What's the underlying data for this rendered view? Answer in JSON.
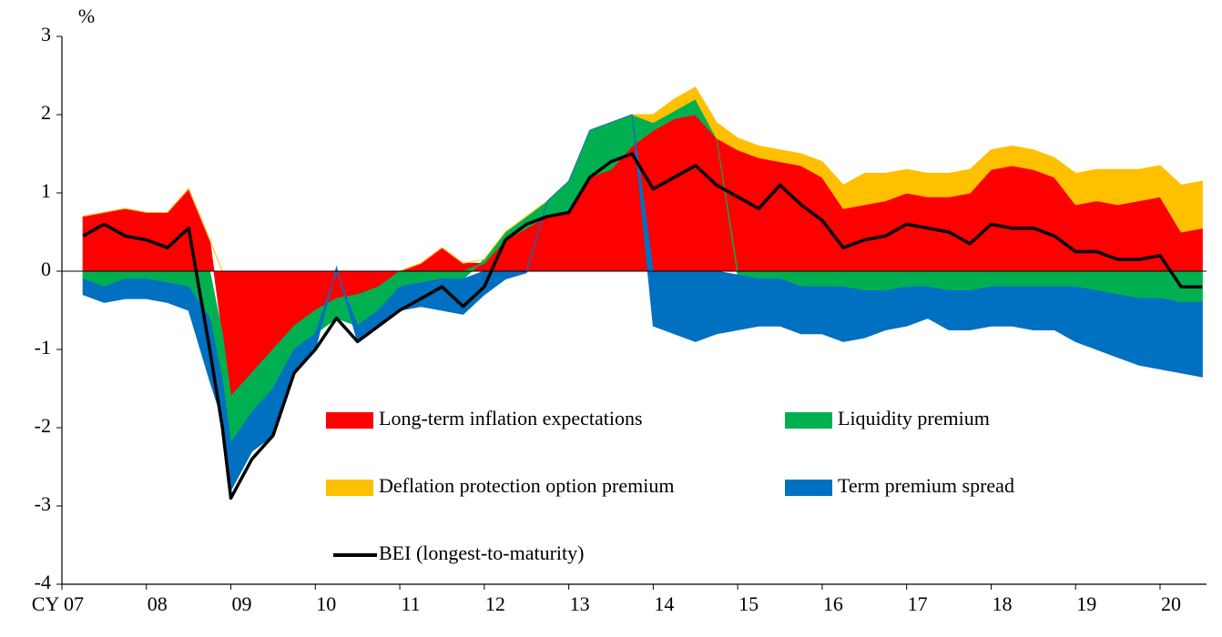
{
  "chart_data": {
    "type": "area",
    "stacked": true,
    "y_label": "%",
    "x": [
      2007.25,
      2007.5,
      2007.75,
      2008,
      2008.25,
      2008.5,
      2008.75,
      2008.9,
      2009,
      2009.25,
      2009.5,
      2009.75,
      2010,
      2010.25,
      2010.5,
      2010.75,
      2011,
      2011.25,
      2011.5,
      2011.75,
      2012,
      2012.25,
      2012.5,
      2012.75,
      2013,
      2013.25,
      2013.5,
      2013.75,
      2014,
      2014.25,
      2014.5,
      2014.75,
      2015,
      2015.25,
      2015.5,
      2015.75,
      2016,
      2016.25,
      2016.5,
      2016.75,
      2017,
      2017.25,
      2017.5,
      2017.75,
      2018,
      2018.25,
      2018.5,
      2018.75,
      2019,
      2019.25,
      2019.5,
      2019.75,
      2020,
      2020.25,
      2020.5
    ],
    "series": [
      {
        "name": "Long-term inflation expectations",
        "color": "#ff0000",
        "type": "area",
        "values": [
          0.7,
          0.75,
          0.8,
          0.75,
          0.75,
          1.05,
          0.4,
          -0.8,
          -1.6,
          -1.3,
          -1.0,
          -0.7,
          -0.5,
          -0.35,
          -0.3,
          -0.2,
          0.0,
          0.1,
          0.3,
          0.1,
          0.1,
          0.4,
          0.55,
          0.7,
          0.75,
          1.2,
          1.3,
          1.6,
          1.8,
          1.95,
          2.0,
          1.7,
          1.55,
          1.45,
          1.4,
          1.35,
          1.2,
          0.8,
          0.85,
          0.9,
          1.0,
          0.95,
          0.95,
          1.0,
          1.3,
          1.35,
          1.3,
          1.2,
          0.85,
          0.9,
          0.85,
          0.9,
          0.95,
          0.5,
          0.55
        ]
      },
      {
        "name": "Liquidity premium",
        "color": "#00b050",
        "type": "area",
        "values": [
          -0.1,
          -0.2,
          -0.1,
          -0.1,
          -0.15,
          -0.2,
          -0.6,
          -0.6,
          -0.6,
          -0.5,
          -0.5,
          -0.3,
          -0.3,
          -0.25,
          -0.4,
          -0.3,
          -0.2,
          -0.15,
          -0.1,
          -0.1,
          0.05,
          0.1,
          0.15,
          0.2,
          0.4,
          0.6,
          0.6,
          0.4,
          0.1,
          0.1,
          0.2,
          0,
          -0.05,
          -0.1,
          -0.1,
          -0.2,
          -0.2,
          -0.2,
          -0.25,
          -0.25,
          -0.2,
          -0.2,
          -0.25,
          -0.25,
          -0.2,
          -0.2,
          -0.2,
          -0.2,
          -0.2,
          -0.25,
          -0.3,
          -0.35,
          -0.35,
          -0.4,
          -0.4
        ]
      },
      {
        "name": "Deflation protection option premium",
        "color": "#ffc000",
        "type": "area",
        "values": [
          0,
          0,
          0,
          0,
          0,
          0,
          0,
          0,
          0,
          0,
          0,
          0,
          0,
          0,
          0,
          0,
          0,
          0,
          0,
          0,
          0,
          0,
          0,
          0,
          0,
          0,
          0,
          0,
          0.1,
          0.15,
          0.15,
          0.2,
          0.15,
          0.15,
          0.15,
          0.15,
          0.2,
          0.3,
          0.4,
          0.35,
          0.3,
          0.3,
          0.3,
          0.3,
          0.25,
          0.25,
          0.25,
          0.25,
          0.4,
          0.4,
          0.45,
          0.4,
          0.4,
          0.6,
          0.6
        ]
      },
      {
        "name": "Term premium spread",
        "color": "#0070c0",
        "type": "area",
        "values": [
          -0.2,
          -0.2,
          -0.25,
          -0.25,
          -0.25,
          -0.3,
          -0.8,
          -0.5,
          -0.6,
          -0.5,
          -0.6,
          -0.3,
          -0.2,
          0.05,
          -0.2,
          -0.2,
          -0.3,
          -0.3,
          -0.4,
          -0.45,
          -0.3,
          -0.1,
          -0.02,
          0,
          0,
          0,
          0,
          0,
          -0.7,
          -0.8,
          -0.9,
          -0.8,
          -0.7,
          -0.6,
          -0.6,
          -0.6,
          -0.6,
          -0.7,
          -0.6,
          -0.5,
          -0.5,
          -0.4,
          -0.5,
          -0.5,
          -0.5,
          -0.5,
          -0.55,
          -0.55,
          -0.7,
          -0.75,
          -0.8,
          -0.85,
          -0.9,
          -0.9,
          -0.95
        ]
      },
      {
        "name": "BEI (longest-to-maturity)",
        "color": "#000000",
        "type": "line",
        "values": [
          0.45,
          0.6,
          0.45,
          0.4,
          0.3,
          0.55,
          -1.0,
          -2.0,
          -2.9,
          -2.4,
          -2.1,
          -1.3,
          -1.0,
          -0.6,
          -0.9,
          -0.7,
          -0.5,
          -0.35,
          -0.2,
          -0.45,
          -0.2,
          0.4,
          0.6,
          0.7,
          0.75,
          1.2,
          1.4,
          1.5,
          1.05,
          1.2,
          1.35,
          1.1,
          0.95,
          0.8,
          1.1,
          0.85,
          0.65,
          0.3,
          0.4,
          0.45,
          0.6,
          0.55,
          0.5,
          0.35,
          0.6,
          0.55,
          0.55,
          0.45,
          0.25,
          0.25,
          0.15,
          0.15,
          0.2,
          -0.2,
          -0.2
        ]
      }
    ],
    "xlim": [
      2007,
      2020.55
    ],
    "xticks": [
      {
        "value": 2007,
        "label": "CY 07"
      },
      {
        "value": 2008,
        "label": "08"
      },
      {
        "value": 2009,
        "label": "09"
      },
      {
        "value": 2010,
        "label": "10"
      },
      {
        "value": 2011,
        "label": "11"
      },
      {
        "value": 2012,
        "label": "12"
      },
      {
        "value": 2013,
        "label": "13"
      },
      {
        "value": 2014,
        "label": "14"
      },
      {
        "value": 2015,
        "label": "15"
      },
      {
        "value": 2016,
        "label": "16"
      },
      {
        "value": 2017,
        "label": "17"
      },
      {
        "value": 2018,
        "label": "18"
      },
      {
        "value": 2019,
        "label": "19"
      },
      {
        "value": 2020,
        "label": "20"
      }
    ],
    "ylim": [
      -4,
      3
    ],
    "yticks": [
      -4,
      -3,
      -2,
      -1,
      0,
      1,
      2,
      3
    ],
    "grid": false,
    "legend": "lower-center"
  }
}
